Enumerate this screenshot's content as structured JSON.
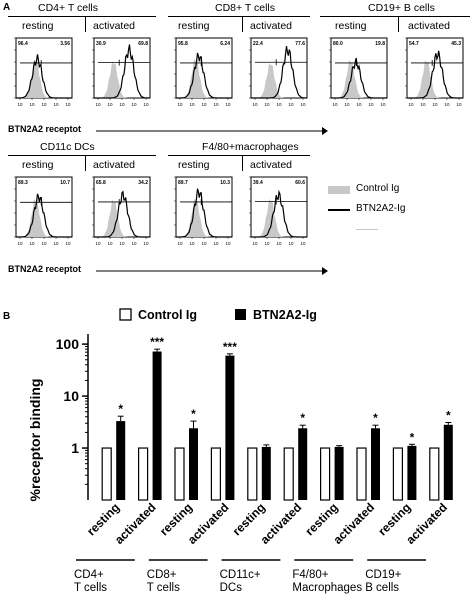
{
  "panel_a": {
    "letter": "A",
    "rows": [
      {
        "groups": [
          {
            "title": "CD4+ T cells",
            "conditions": [
              {
                "label": "resting",
                "pct_left": "96.4",
                "pct_right": "3.56",
                "control_peak": 0.38,
                "test_peak": 0.4,
                "gate": 0.78,
                "test_shift": 0.0
              },
              {
                "label": "activated",
                "pct_left": "30.9",
                "pct_right": "69.8",
                "control_peak": 0.35,
                "test_peak": 0.55,
                "gate": 0.8,
                "test_shift": 0.45
              }
            ]
          },
          {
            "title": "CD8+ T cells",
            "conditions": [
              {
                "label": "resting",
                "pct_left": "95.8",
                "pct_right": "6.24",
                "control_peak": 0.4,
                "test_peak": 0.45,
                "gate": 0.78,
                "test_shift": 0.05
              },
              {
                "label": "activated",
                "pct_left": "22.4",
                "pct_right": "77.6",
                "control_peak": 0.33,
                "test_peak": 0.55,
                "gate": 0.82,
                "test_shift": 0.5
              }
            ]
          },
          {
            "title": "CD19+ B cells",
            "conditions": [
              {
                "label": "resting",
                "pct_left": "80.0",
                "pct_right": "19.8",
                "control_peak": 0.38,
                "test_peak": 0.35,
                "gate": 0.78,
                "test_shift": 0.12
              },
              {
                "label": "activated",
                "pct_left": "54.7",
                "pct_right": "45.3",
                "control_peak": 0.38,
                "test_peak": 0.48,
                "gate": 0.78,
                "test_shift": 0.3
              }
            ]
          }
        ],
        "axis_label": "BTN2A2 receptot"
      },
      {
        "groups": [
          {
            "title": "CD11c DCs",
            "conditions": [
              {
                "label": "resting",
                "pct_left": "89.3",
                "pct_right": "10.7",
                "control_peak": 0.38,
                "test_peak": 0.42,
                "gate": 0.76,
                "test_shift": 0.05
              },
              {
                "label": "activated",
                "pct_left": "65.8",
                "pct_right": "34.2",
                "control_peak": 0.36,
                "test_peak": 0.45,
                "gate": 0.78,
                "test_shift": 0.25
              }
            ]
          },
          {
            "title": "F4/80+macrophages",
            "conditions": [
              {
                "label": "resting",
                "pct_left": "89.7",
                "pct_right": "10.3",
                "control_peak": 0.38,
                "test_peak": 0.5,
                "gate": 0.78,
                "test_shift": 0.05
              },
              {
                "label": "activated",
                "pct_left": "39.4",
                "pct_right": "60.6",
                "control_peak": 0.38,
                "test_peak": 0.45,
                "gate": 0.8,
                "test_shift": 0.2
              }
            ]
          }
        ],
        "axis_label": "BTN2A2 receptot"
      }
    ],
    "legend": {
      "control": "Control Ig",
      "test": "BTN2A2-Ig"
    }
  },
  "panel_b": {
    "letter": "B",
    "legend": {
      "control": "Control Ig",
      "test": "BTN2A2-Ig"
    },
    "ylabel": "%receptor binding",
    "yticks": [
      "1",
      "10",
      "100"
    ],
    "group_labels": [
      "CD4+\nT cells",
      "CD8+\nT cells",
      "CD11c+\nDCs",
      "F4/80+\nMacrophages",
      "CD19+\nB cells"
    ]
  },
  "colors": {
    "control_fill": "#c8c8c8",
    "test_line": "#000000",
    "bar_control": "#ffffff",
    "bar_test": "#000000"
  },
  "chart_data": {
    "type": "bar",
    "categories": [
      "resting",
      "activated",
      "resting",
      "activated",
      "resting",
      "activated",
      "resting",
      "activated",
      "resting",
      "activated"
    ],
    "series": [
      {
        "name": "Control Ig",
        "values": [
          1,
          1,
          1,
          1,
          1,
          1,
          1,
          1,
          1,
          1
        ]
      },
      {
        "name": "BTN2A2-Ig",
        "values": [
          3.3,
          72,
          2.4,
          60,
          1.05,
          2.4,
          1.05,
          2.4,
          1.1,
          2.8
        ],
        "errors": [
          0.8,
          8,
          0.9,
          5,
          0.1,
          0.35,
          0.06,
          0.35,
          0.08,
          0.3
        ]
      }
    ],
    "significance": [
      "*",
      "***",
      "*",
      "***",
      "",
      "*",
      "",
      "*",
      "*",
      "*"
    ],
    "ylabel": "%receptor binding",
    "yscale": "log",
    "ylim": [
      0.1,
      120
    ],
    "yticks": [
      1,
      10,
      100
    ],
    "legend": "top"
  }
}
